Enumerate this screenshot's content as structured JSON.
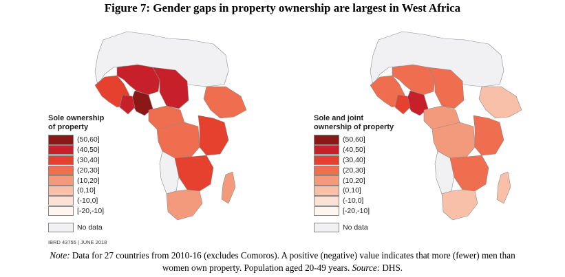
{
  "title": "Figure 7: Gender gaps in property ownership are largest in West Africa",
  "colors": {
    "bin_50_60": "#8b1717",
    "bin_40_50": "#c8202a",
    "bin_30_40": "#e6402e",
    "bin_20_30": "#ef6e4f",
    "bin_10_20": "#f49a7c",
    "bin_0_10": "#f8c0a8",
    "bin_m10_0": "#fce1d4",
    "bin_m20_m10": "#fff5ef",
    "no_data": "#f1f1f3",
    "border": "#8a8a8a"
  },
  "maps": [
    {
      "legend_title_line1": "Sole ownership",
      "legend_title_line2": "of property",
      "legend_bins": [
        "(50,60]",
        "(40,50]",
        "(30,40]",
        "(20,30]",
        "(10,20]",
        "(0,10]",
        "(-10,0]",
        "[-20,-10]"
      ],
      "no_data_label": "No data",
      "regions": {
        "north_africa": "no_data",
        "west_coast": "bin_30_40",
        "sahel_west": "bin_40_50",
        "sahel_east": "bin_40_50",
        "nigeria": "bin_50_60",
        "ghana_togo": "bin_40_50",
        "central": "bin_20_30",
        "horn": "bin_20_30",
        "east": "bin_30_40",
        "congo": "bin_20_30",
        "southern_east": "bin_30_40",
        "southern_west": "no_data",
        "south_africa": "bin_10_20",
        "madagascar": "bin_10_20"
      }
    },
    {
      "legend_title_line1": "Sole and joint",
      "legend_title_line2": "ownership of property",
      "legend_bins": [
        "(50,60]",
        "(40,50]",
        "(30,40]",
        "(20,30]",
        "(10,20]",
        "(0,10]",
        "(-10,0]",
        "[-20,-10]"
      ],
      "no_data_label": "No data",
      "regions": {
        "north_africa": "no_data",
        "west_coast": "bin_20_30",
        "sahel_west": "bin_20_30",
        "sahel_east": "bin_20_30",
        "nigeria": "bin_40_50",
        "ghana_togo": "bin_30_40",
        "central": "bin_10_20",
        "horn": "bin_0_10",
        "east": "bin_20_30",
        "congo": "bin_10_20",
        "southern_east": "bin_20_30",
        "southern_west": "no_data",
        "south_africa": "bin_0_10",
        "madagascar": "bin_0_10"
      }
    }
  ],
  "ibrd_label": "IBRD 43755 | JUNE 2018",
  "note": {
    "label": "Note:",
    "text1": " Data for 27 countries from 2010-16 (excludes Comoros). A positive (negative) value indicates that more (fewer) men than",
    "text2": "women own property. Population aged 20-49 years. ",
    "source_label": "Source:",
    "source_text": " DHS."
  }
}
